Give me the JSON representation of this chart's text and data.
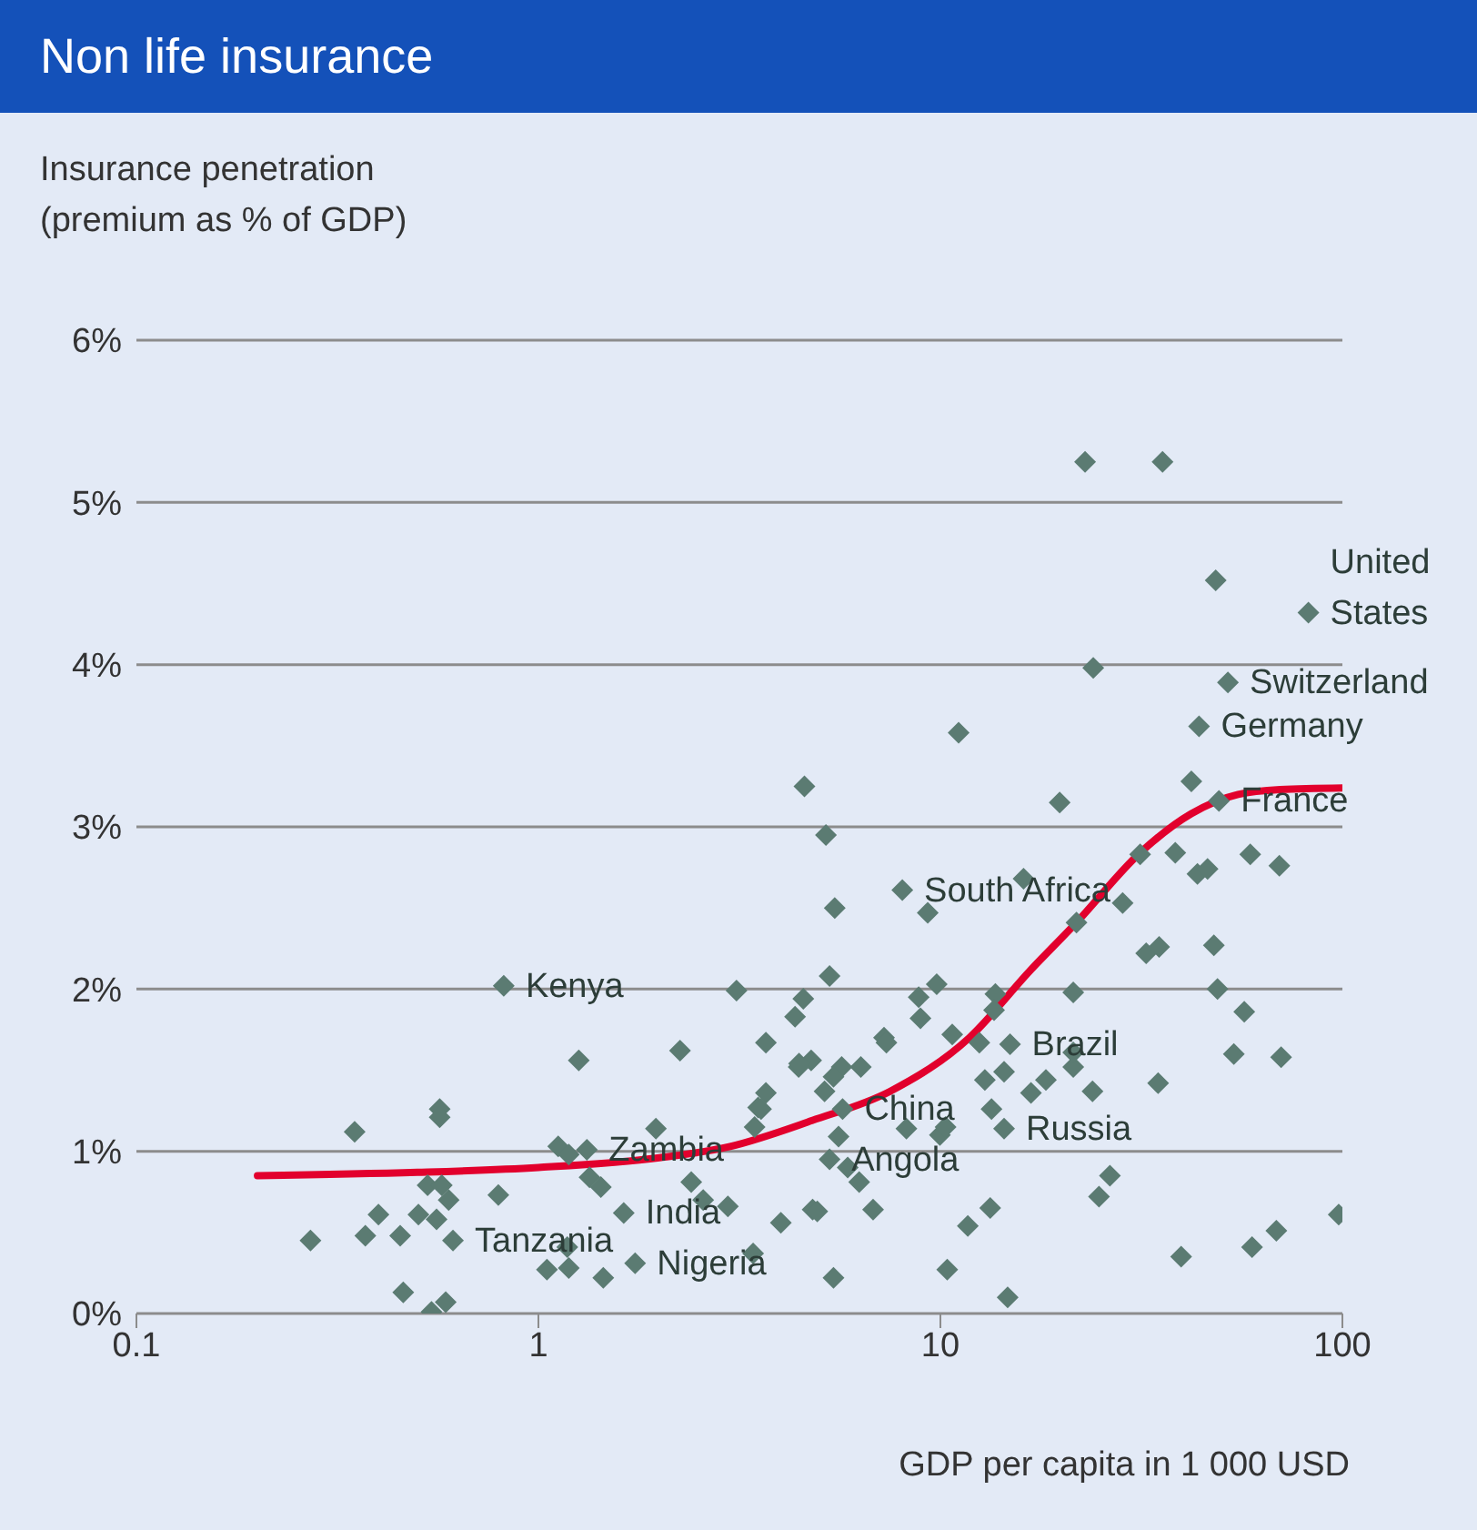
{
  "chart_data": {
    "type": "scatter",
    "title": "Non life insurance",
    "ylabel": "Insurance penetration (premium as % of GDP)",
    "xlabel": "GDP per capita in 1 000 USD",
    "log": "x",
    "grid": "y",
    "xlim": [
      0.1,
      100
    ],
    "xticks": [
      0.1,
      1,
      10,
      100
    ],
    "ylim": [
      0,
      6
    ],
    "yticks": [
      {
        "value": 0,
        "label": "0%"
      },
      {
        "value": 1,
        "label": "1%"
      },
      {
        "value": 2,
        "label": "2%"
      },
      {
        "value": 3,
        "label": "3%"
      },
      {
        "value": 4,
        "label": "4%"
      },
      {
        "value": 5,
        "label": "5%"
      },
      {
        "value": 6,
        "label": "6%"
      }
    ],
    "series": [
      {
        "marker": "diamond",
        "color": "#5b7b72",
        "x": [
          0.82,
          3.11,
          4.56,
          4.35,
          3.68,
          2.25,
          1.26,
          4.77,
          4.44,
          3.68,
          3.52,
          3.45,
          0.568,
          0.568,
          0.349,
          1.96,
          1.12,
          1.19,
          1.32,
          1.34,
          1.43,
          0.53,
          0.575,
          0.598,
          0.795,
          0.4,
          0.503,
          0.558,
          0.613,
          0.271,
          0.371,
          0.453,
          1.63,
          2.4,
          2.96,
          2.57,
          1.18,
          1.05,
          1.19,
          1.45,
          1.74,
          0.461,
          0.542,
          0.588,
          3.42,
          4.81,
          11.1,
          4.59,
          19.8,
          5.19,
          16.1,
          8.04,
          5.46,
          9.3,
          21.8,
          5.3,
          9.79,
          8.83,
          8.92,
          13.7,
          13.6,
          21.4,
          7.24,
          7.34,
          10.7,
          12.5,
          14.9,
          21.4,
          4.45,
          6.34,
          5.68,
          5.42,
          5.15,
          12.9,
          14.4,
          18.3,
          16.8,
          3.58,
          5.71,
          13.4,
          14.4,
          9.97,
          10.3,
          8.23,
          5.58,
          5.3,
          5.88,
          6.28,
          4.94,
          6.8,
          13.3,
          11.7,
          4.01,
          5.42,
          10.4,
          14.7,
          22.9,
          35.7,
          48.4,
          82.3,
          24,
          51.9,
          44,
          42.1,
          49.3,
          31.4,
          38.4,
          43.6,
          46.2,
          59,
          69.7,
          28.4,
          32.5,
          35,
          47.9,
          48.9,
          57,
          53.7,
          70.4,
          21.4,
          23.9,
          34.8,
          26.4,
          24.8,
          39.7,
          59.6,
          68.5,
          97.9
        ],
        "values": [
          2.02,
          1.99,
          1.94,
          1.83,
          1.67,
          1.62,
          1.56,
          1.56,
          1.52,
          1.36,
          1.27,
          1.15,
          1.26,
          1.21,
          1.12,
          1.14,
          1.03,
          0.98,
          1.01,
          0.84,
          0.78,
          0.79,
          0.79,
          0.7,
          0.73,
          0.61,
          0.61,
          0.58,
          0.45,
          0.45,
          0.48,
          0.48,
          0.62,
          0.81,
          0.66,
          0.7,
          0.41,
          0.27,
          0.28,
          0.22,
          0.31,
          0.13,
          0.01,
          0.07,
          0.37,
          0.64,
          3.58,
          3.25,
          3.15,
          2.95,
          2.68,
          2.61,
          2.5,
          2.47,
          2.41,
          2.08,
          2.03,
          1.95,
          1.82,
          1.97,
          1.87,
          1.98,
          1.7,
          1.67,
          1.72,
          1.67,
          1.66,
          1.52,
          1.54,
          1.52,
          1.52,
          1.46,
          1.37,
          1.44,
          1.49,
          1.44,
          1.36,
          1.26,
          1.26,
          1.26,
          1.14,
          1.1,
          1.15,
          1.14,
          1.09,
          0.95,
          0.9,
          0.81,
          0.63,
          0.64,
          0.65,
          0.54,
          0.56,
          0.22,
          0.27,
          0.1,
          5.25,
          5.25,
          4.52,
          4.32,
          3.98,
          3.89,
          3.62,
          3.28,
          3.16,
          2.83,
          2.84,
          2.71,
          2.74,
          2.83,
          2.76,
          2.53,
          2.22,
          2.26,
          2.27,
          2,
          1.86,
          1.6,
          1.58,
          1.61,
          1.37,
          1.42,
          0.85,
          0.72,
          0.35,
          0.41,
          0.51,
          0.61
        ]
      },
      {
        "type": "line",
        "color": "#e2002d",
        "x": [
          0.2,
          0.5,
          1,
          2,
          3,
          4.8,
          7.5,
          11.8,
          16.8,
          21.8,
          31.4,
          42,
          55,
          70,
          100
        ],
        "values": [
          0.85,
          0.87,
          0.9,
          0.96,
          1.03,
          1.19,
          1.37,
          1.7,
          2.12,
          2.41,
          2.84,
          3.08,
          3.2,
          3.23,
          3.24
        ]
      }
    ],
    "annotations": [
      {
        "text": "United States",
        "x": 82.3,
        "y": 4.32
      },
      {
        "text": "Switzerland",
        "x": 51.9,
        "y": 3.89
      },
      {
        "text": "Germany",
        "x": 44,
        "y": 3.62
      },
      {
        "text": "France",
        "x": 49.3,
        "y": 3.16
      },
      {
        "text": "South Africa",
        "x": 8.04,
        "y": 2.61
      },
      {
        "text": "Brazil",
        "x": 14.9,
        "y": 1.66
      },
      {
        "text": "Russia",
        "x": 14.4,
        "y": 1.14
      },
      {
        "text": "China",
        "x": 5.71,
        "y": 1.26
      },
      {
        "text": "Angola",
        "x": 5.3,
        "y": 0.95
      },
      {
        "text": "Kenya",
        "x": 0.82,
        "y": 2.02
      },
      {
        "text": "Zambia",
        "x": 1.32,
        "y": 1.01
      },
      {
        "text": "India",
        "x": 1.63,
        "y": 0.62
      },
      {
        "text": "Nigeria",
        "x": 1.74,
        "y": 0.31
      },
      {
        "text": "Tanzania",
        "x": 0.613,
        "y": 0.45
      }
    ]
  }
}
